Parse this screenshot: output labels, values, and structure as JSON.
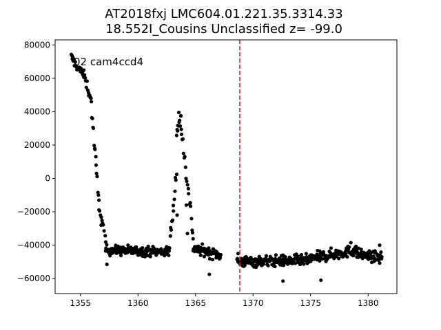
{
  "chart_data": {
    "type": "scatter",
    "title_line1": "AT2018fxj  LMC604.01.221.35.3314.33",
    "title_line2": "18.552I_Cousins Unclassified z= -99.0",
    "annotation": "02 cam4ccd4",
    "xlabel": "",
    "ylabel": "",
    "xlim": [
      1352.8,
      1382.5
    ],
    "ylim": [
      -69000,
      83000
    ],
    "xticks": [
      1355,
      1360,
      1365,
      1370,
      1375,
      1380
    ],
    "yticks": [
      -60000,
      -40000,
      -20000,
      0,
      20000,
      40000,
      60000,
      80000
    ],
    "grid": false,
    "point_color": "#000000",
    "vline": {
      "x": 1368.85,
      "color": "#d62728",
      "style": "dashed"
    },
    "series": [
      {
        "segments": [
          {
            "x0": 1354.2,
            "x1": 1354.6,
            "y0": 73000,
            "y1": 68000,
            "noise": 2500,
            "n": 10
          },
          {
            "x0": 1354.6,
            "x1": 1355.3,
            "y0": 68000,
            "y1": 62000,
            "noise": 2500,
            "n": 14
          },
          {
            "x0": 1355.3,
            "x1": 1355.9,
            "y0": 62000,
            "y1": 48000,
            "noise": 3000,
            "n": 12
          },
          {
            "x0": 1355.9,
            "x1": 1356.6,
            "y0": 48000,
            "y1": -15000,
            "noise": 4000,
            "n": 16
          },
          {
            "x0": 1356.6,
            "x1": 1357.2,
            "y0": -15000,
            "y1": -38000,
            "noise": 3500,
            "n": 10
          },
          {
            "x0": 1357.2,
            "x1": 1362.7,
            "y0": -43000,
            "y1": -44000,
            "noise": 2800,
            "n": 160
          },
          {
            "x0": 1362.7,
            "x1": 1363.35,
            "y0": -44000,
            "y1": 5000,
            "noise": 5000,
            "n": 14
          },
          {
            "x0": 1363.35,
            "x1": 1363.75,
            "y0": 28000,
            "y1": 36000,
            "noise": 4000,
            "n": 10
          },
          {
            "x0": 1363.75,
            "x1": 1364.8,
            "y0": 32000,
            "y1": -35000,
            "noise": 5000,
            "n": 20
          },
          {
            "x0": 1364.8,
            "x1": 1367.2,
            "y0": -42000,
            "y1": -46000,
            "noise": 3000,
            "n": 70
          },
          {
            "x0": 1368.6,
            "x1": 1375.0,
            "y0": -50000,
            "y1": -49000,
            "noise": 3200,
            "n": 190
          },
          {
            "x0": 1375.0,
            "x1": 1379.0,
            "y0": -48000,
            "y1": -43000,
            "noise": 3200,
            "n": 120
          },
          {
            "x0": 1379.0,
            "x1": 1381.2,
            "y0": -45000,
            "y1": -48000,
            "noise": 3000,
            "n": 70
          }
        ],
        "outliers": [
          [
            1357.3,
            -51500
          ],
          [
            1366.2,
            -57500
          ],
          [
            1372.6,
            -61500
          ],
          [
            1375.9,
            -61000
          ],
          [
            1368.7,
            -45000
          ],
          [
            1378.5,
            -38500
          ],
          [
            1381.0,
            -40000
          ],
          [
            1364.2,
            -16000
          ],
          [
            1364.3,
            -33000
          ],
          [
            1356.8,
            -28000
          ],
          [
            1363.4,
            -22000
          ],
          [
            1363.55,
            39500
          ]
        ]
      }
    ]
  }
}
